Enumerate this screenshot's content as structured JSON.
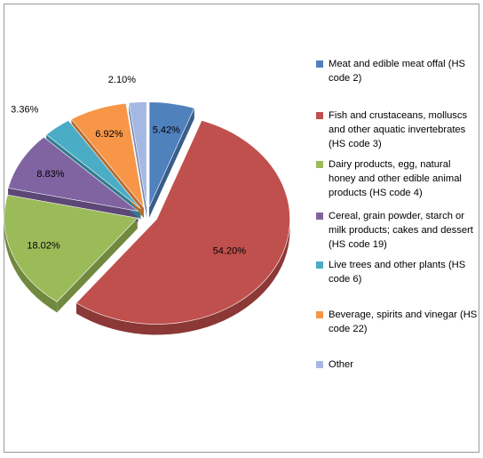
{
  "chart_data": {
    "type": "pie",
    "style": "3d-exploded",
    "legend_position": "right",
    "slices": [
      {
        "label": "Meat and edible meat offal (HS code 2)",
        "value": 5.42,
        "display": "5.42%",
        "color": "#4f81bd",
        "side_color": "#385d8a"
      },
      {
        "label": "Fish and crustaceans, molluscs and other aquatic invertebrates (HS code 3)",
        "value": 54.2,
        "display": "54.20%",
        "color": "#c0504d",
        "side_color": "#8c3836"
      },
      {
        "label": "Dairy products, egg, natural honey and other edible animal products (HS code 4)",
        "value": 18.02,
        "display": "18.02%",
        "color": "#9bbb59",
        "side_color": "#71893f"
      },
      {
        "label": "Cereal, grain powder, starch or milk products; cakes and dessert (HS code 19)",
        "value": 8.83,
        "display": "8.83%",
        "color": "#8064a2",
        "side_color": "#5c4776"
      },
      {
        "label": "Live trees and other plants (HS code 6)",
        "value": 3.36,
        "display": "3.36%",
        "color": "#4bacc6",
        "side_color": "#327c90"
      },
      {
        "label": "Beverage, spirits and vinegar (HS code 22)",
        "value": 6.92,
        "display": "6.92%",
        "color": "#f79646",
        "side_color": "#b66c2f"
      },
      {
        "label": "Other",
        "value": 2.1,
        "display": "2.10%",
        "color": "#a5b8e3",
        "side_color": "#7a8bb3"
      }
    ]
  }
}
